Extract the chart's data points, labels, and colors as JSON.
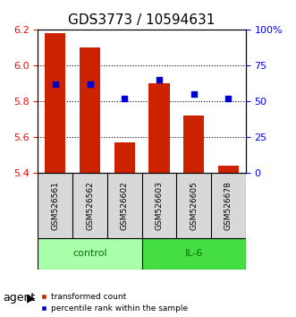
{
  "title": "GDS3773 / 10594631",
  "samples": [
    "GSM526561",
    "GSM526562",
    "GSM526602",
    "GSM526603",
    "GSM526605",
    "GSM526678"
  ],
  "groups": [
    "control",
    "control",
    "control",
    "IL-6",
    "IL-6",
    "IL-6"
  ],
  "bar_values": [
    6.18,
    6.1,
    5.57,
    5.9,
    5.72,
    5.44
  ],
  "percentile_values": [
    62,
    62,
    52,
    65,
    55,
    52
  ],
  "bar_color": "#cc2200",
  "dot_color": "#0000cc",
  "ylim_left": [
    5.4,
    6.2
  ],
  "ylim_right": [
    0,
    100
  ],
  "yticks_left": [
    5.4,
    5.6,
    5.8,
    6.0,
    6.2
  ],
  "yticks_right": [
    0,
    25,
    50,
    75,
    100
  ],
  "ytick_labels_right": [
    "0",
    "25",
    "50",
    "75",
    "100%"
  ],
  "grid_values": [
    5.6,
    5.8,
    6.0
  ],
  "bar_bottom": 5.4,
  "group_colors": {
    "control": "#aaffaa",
    "IL-6": "#44dd44"
  },
  "group_label_color": "#007700",
  "legend_items": [
    {
      "color": "#cc2200",
      "label": "transformed count"
    },
    {
      "color": "#0000cc",
      "label": "percentile rank within the sample"
    }
  ],
  "bar_width": 0.6,
  "agent_label": "agent"
}
